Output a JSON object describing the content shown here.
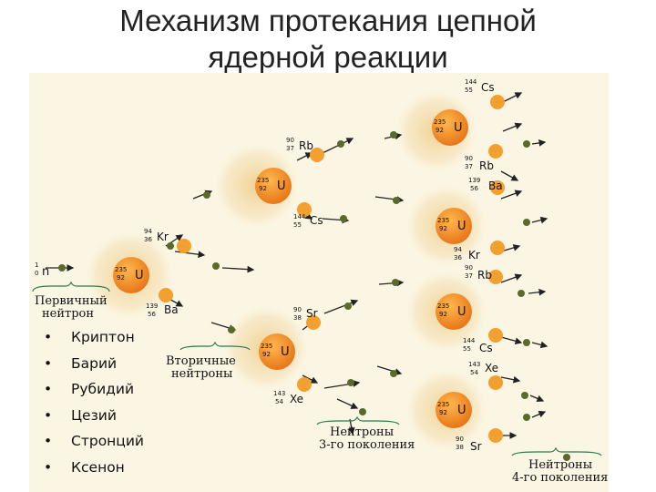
{
  "title": {
    "line1": "Механизм протекания цепной",
    "line2": "ядерной реакции"
  },
  "diagram": {
    "primary_neutron": {
      "mass": "1",
      "charge": "0",
      "symbol": "n"
    },
    "captions": {
      "primary": [
        "Первичный",
        "нейтрон"
      ],
      "secondary": [
        "Вторичные",
        "нейтроны"
      ],
      "third": [
        "Нейтроны",
        "3-го поколения"
      ],
      "fourth": [
        "Нейтроны",
        "4-го поколения"
      ]
    },
    "uranium": {
      "mass": "235",
      "charge": "92",
      "symbol": "U"
    },
    "fragments": [
      {
        "id": "kr1",
        "mass": "94",
        "charge": "36",
        "symbol": "Kr"
      },
      {
        "id": "ba1",
        "mass": "139",
        "charge": "56",
        "symbol": "Ba"
      },
      {
        "id": "rb1",
        "mass": "90",
        "charge": "37",
        "symbol": "Rb"
      },
      {
        "id": "cs1",
        "mass": "144",
        "charge": "55",
        "symbol": "Cs"
      },
      {
        "id": "sr1",
        "mass": "90",
        "charge": "38",
        "symbol": "Sr"
      },
      {
        "id": "xe1",
        "mass": "143",
        "charge": "54",
        "symbol": "Xe"
      },
      {
        "id": "cs2",
        "mass": "144",
        "charge": "55",
        "symbol": "Cs"
      },
      {
        "id": "rb2",
        "mass": "90",
        "charge": "37",
        "symbol": "Rb"
      },
      {
        "id": "ba2",
        "mass": "139",
        "charge": "56",
        "symbol": "Ba"
      },
      {
        "id": "kr2",
        "mass": "94",
        "charge": "36",
        "symbol": "Kr"
      },
      {
        "id": "rb3",
        "mass": "90",
        "charge": "37",
        "symbol": "Rb"
      },
      {
        "id": "cs3",
        "mass": "144",
        "charge": "55",
        "symbol": "Cs"
      },
      {
        "id": "xe2",
        "mass": "143",
        "charge": "54",
        "symbol": "Xe"
      },
      {
        "id": "sr2",
        "mass": "90",
        "charge": "38",
        "symbol": "Sr"
      }
    ],
    "colors": {
      "nucleus": "#f28a1e",
      "fragment": "#f4a030",
      "neutron": "#5a6a2a",
      "glow": "#f3d9a0",
      "text": "#111111"
    }
  },
  "bullets": [
    "Криптон",
    "Барий",
    "Рубидий",
    "Цезий",
    "Стронций",
    "Ксенон"
  ]
}
